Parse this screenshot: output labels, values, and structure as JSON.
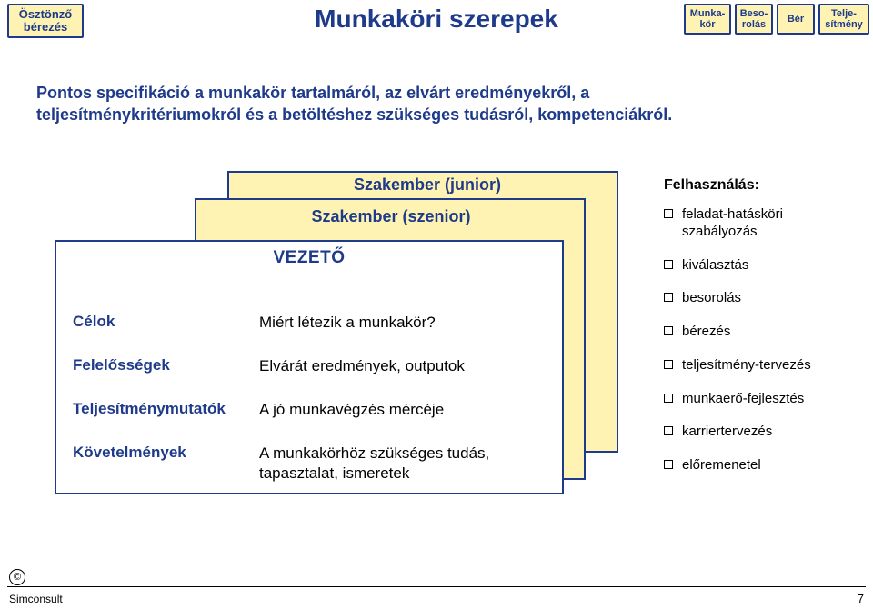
{
  "header": {
    "leftChip": "Ösztönző bérezés",
    "rightChips": [
      "Munka-\nkör",
      "Beso-\nrolás",
      "Bér",
      "Telje-\nsítmény"
    ]
  },
  "title": "Munkaköri szerepek",
  "intro": "Pontos specifikáció a munkakör tartalmáról, az elvárt eredményekről, a teljesítménykritériumokról és a betöltéshez szükséges tudásról, kompetenciákról.",
  "cards": {
    "back": "Szakember (junior)",
    "mid": "Szakember (szenior)",
    "front": "VEZETŐ"
  },
  "defs": [
    {
      "key": "Célok",
      "val": "Miért létezik a munkakör?"
    },
    {
      "key": "Felelősségek",
      "val": "Elvárát eredmények, outputok"
    },
    {
      "key": "Teljesítménymutatók",
      "val": "A jó munkavégzés mércéje"
    },
    {
      "key": "Követelmények",
      "val": "A munkakörhöz szükséges tudás, tapasztalat, ismeretek"
    }
  ],
  "usage": {
    "title": "Felhasználás:",
    "items": [
      "feladat-hatásköri szabályozás",
      "kiválasztás",
      "besorolás",
      "bérezés",
      "teljesítmény-tervezés",
      "munkaerő-fejlesztés",
      "karriertervezés",
      "előremenetel"
    ]
  },
  "footer": {
    "brand": "Simconsult",
    "page": "7"
  },
  "style": {
    "chipBg": "#fef3b2",
    "chipBorder": "#1e3a8a",
    "accent": "#1e3a8a",
    "pageBg": "#ffffff",
    "cardFrontBg": "#ffffff"
  }
}
